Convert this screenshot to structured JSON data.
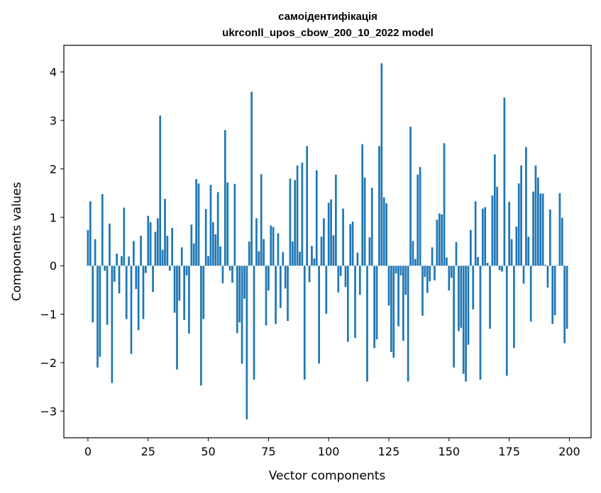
{
  "chart_data": {
    "type": "bar",
    "title": "самоідентифікація",
    "subtitle": "ukrconll_upos_cbow_200_10_2022 model",
    "xlabel": "Vector components",
    "ylabel": "Components values",
    "xlim": [
      -10,
      209
    ],
    "ylim": [
      -3.55,
      4.55
    ],
    "xticks": [
      0,
      25,
      50,
      75,
      100,
      125,
      150,
      175,
      200
    ],
    "yticks": [
      -3,
      -2,
      -1,
      0,
      1,
      2,
      3,
      4
    ],
    "grid": false,
    "bar_color": "#1f77b4",
    "values": [
      0.74,
      1.33,
      -1.17,
      0.55,
      -2.1,
      -1.88,
      1.48,
      -0.1,
      -1.22,
      0.87,
      -2.42,
      -0.33,
      0.25,
      -0.57,
      0.2,
      1.2,
      -1.1,
      0.19,
      -1.82,
      0.51,
      -0.48,
      -1.33,
      0.62,
      -1.1,
      -0.15,
      1.03,
      0.9,
      -0.54,
      0.7,
      0.98,
      3.1,
      0.33,
      1.38,
      0.62,
      -0.1,
      0.78,
      -0.97,
      -2.14,
      -0.72,
      0.38,
      -1.12,
      -0.2,
      -1.4,
      0.85,
      0.46,
      1.79,
      1.7,
      -2.47,
      -1.1,
      1.17,
      0.2,
      1.67,
      0.9,
      0.65,
      1.52,
      0.4,
      -0.36,
      2.8,
      1.72,
      -0.1,
      -0.35,
      1.69,
      -1.39,
      -1.17,
      -2.02,
      -0.68,
      -3.17,
      0.5,
      3.59,
      -2.35,
      0.98,
      0.3,
      1.89,
      0.55,
      -1.23,
      -0.51,
      0.83,
      0.8,
      -1.2,
      0.67,
      -0.87,
      0.28,
      -0.47,
      -1.14,
      1.8,
      0.5,
      1.77,
      2.07,
      0.29,
      2.13,
      -2.35,
      2.47,
      -0.34,
      0.41,
      0.15,
      1.97,
      -2.02,
      0.6,
      0.98,
      -0.99,
      1.3,
      1.37,
      0.63,
      1.88,
      -0.55,
      -0.21,
      1.18,
      -0.44,
      -1.57,
      0.86,
      0.91,
      -1.49,
      0.27,
      -0.6,
      2.51,
      1.82,
      -2.39,
      0.59,
      1.61,
      -1.7,
      -1.52,
      2.47,
      4.18,
      1.41,
      1.29,
      -0.82,
      -1.78,
      -1.9,
      -0.16,
      -1.25,
      -0.2,
      -1.55,
      -0.6,
      -2.39,
      2.87,
      0.51,
      0.14,
      1.88,
      2.04,
      -1.03,
      -0.23,
      -0.56,
      -0.32,
      0.38,
      -0.3,
      0.95,
      1.08,
      1.06,
      2.53,
      0.17,
      -0.51,
      -0.25,
      -2.1,
      0.49,
      -1.35,
      -1.28,
      -2.23,
      -2.39,
      -1.63,
      0.74,
      -0.9,
      1.33,
      0.18,
      -2.35,
      1.18,
      1.21,
      0.06,
      -1.3,
      1.45,
      2.3,
      1.63,
      -0.09,
      -0.12,
      3.47,
      -2.27,
      1.32,
      0.55,
      -1.7,
      0.81,
      1.7,
      2.07,
      -0.37,
      2.45,
      0.6,
      -1.15,
      1.53,
      2.07,
      1.82,
      1.49,
      1.49,
      0.02,
      -0.45,
      1.16,
      -1.2,
      -1.02,
      0.01,
      1.5,
      0.99,
      -1.6,
      -1.3
    ]
  }
}
